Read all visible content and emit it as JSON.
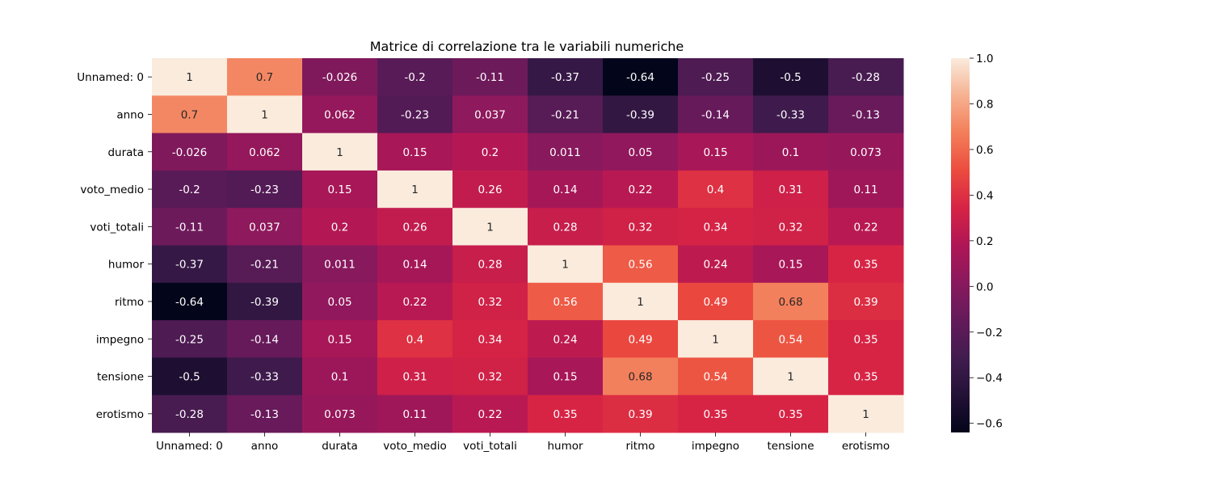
{
  "chart_data": {
    "type": "heatmap",
    "title": "Matrice di correlazione tra le variabili numeriche",
    "xlabel": "",
    "ylabel": "",
    "rows": [
      "Unnamed: 0",
      "anno",
      "durata",
      "voto_medio",
      "voti_totali",
      "humor",
      "ritmo",
      "impegno",
      "tensione",
      "erotismo"
    ],
    "columns": [
      "Unnamed: 0",
      "anno",
      "durata",
      "voto_medio",
      "voti_totali",
      "humor",
      "ritmo",
      "impegno",
      "tensione",
      "erotismo"
    ],
    "values": [
      [
        1,
        0.7,
        -0.026,
        -0.2,
        -0.11,
        -0.37,
        -0.64,
        -0.25,
        -0.5,
        -0.28
      ],
      [
        0.7,
        1,
        0.062,
        -0.23,
        0.037,
        -0.21,
        -0.39,
        -0.14,
        -0.33,
        -0.13
      ],
      [
        -0.026,
        0.062,
        1,
        0.15,
        0.2,
        0.011,
        0.05,
        0.15,
        0.1,
        0.073
      ],
      [
        -0.2,
        -0.23,
        0.15,
        1,
        0.26,
        0.14,
        0.22,
        0.4,
        0.31,
        0.11
      ],
      [
        -0.11,
        0.037,
        0.2,
        0.26,
        1,
        0.28,
        0.32,
        0.34,
        0.32,
        0.22
      ],
      [
        -0.37,
        -0.21,
        0.011,
        0.14,
        0.28,
        1,
        0.56,
        0.24,
        0.15,
        0.35
      ],
      [
        -0.64,
        -0.39,
        0.05,
        0.22,
        0.32,
        0.56,
        1,
        0.49,
        0.68,
        0.39
      ],
      [
        -0.25,
        -0.14,
        0.15,
        0.4,
        0.34,
        0.24,
        0.49,
        1,
        0.54,
        0.35
      ],
      [
        -0.5,
        -0.33,
        0.1,
        0.31,
        0.32,
        0.15,
        0.68,
        0.54,
        1,
        0.35
      ],
      [
        -0.28,
        -0.13,
        0.073,
        0.11,
        0.22,
        0.35,
        0.39,
        0.35,
        0.35,
        1
      ]
    ],
    "colorbar": {
      "min": -0.64,
      "max": 1,
      "ticks": [
        1.0,
        0.8,
        0.6,
        0.4,
        0.2,
        0.0,
        -0.2,
        -0.4,
        -0.6
      ],
      "tick_labels": [
        "1.0",
        "0.8",
        "0.6",
        "0.4",
        "0.2",
        "0.0",
        "−0.2",
        "−0.4",
        "−0.6"
      ]
    },
    "colormap": "rocket",
    "grid": false,
    "legend": "colorbar-right"
  }
}
